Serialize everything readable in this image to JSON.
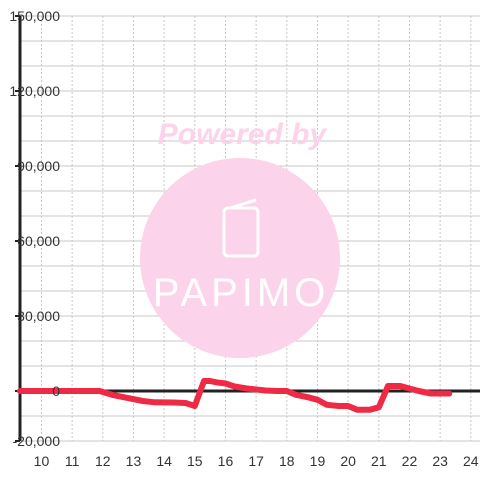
{
  "watermark": {
    "caption": "Powered by",
    "logo_text": "PAPIMO",
    "color": "#fbd3ea",
    "icon": "smartphone-icon"
  },
  "chart_data": {
    "type": "line",
    "title": "",
    "xlabel": "",
    "ylabel": "",
    "xlim": [
      9.3,
      24.3
    ],
    "ylim": [
      -20000,
      150000
    ],
    "x_ticks": [
      10,
      11,
      12,
      13,
      14,
      15,
      16,
      17,
      18,
      19,
      20,
      21,
      22,
      23,
      24
    ],
    "x_tick_labels": [
      "10",
      "11",
      "12",
      "13",
      "14",
      "15",
      "16",
      "17",
      "18",
      "19",
      "20",
      "21",
      "22",
      "23",
      "24"
    ],
    "y_ticks": [
      -20000,
      0,
      30000,
      60000,
      90000,
      120000,
      150000
    ],
    "y_tick_labels": [
      "-20,000",
      "0",
      "30,000",
      "60,000",
      "90,000",
      "120,000",
      "150,000"
    ],
    "grid": true,
    "series": [
      {
        "color": "#ee2a44",
        "x": [
          9.3,
          10,
          11,
          11.9,
          12.3,
          12.7,
          13.3,
          13.7,
          14.3,
          14.7,
          15.0,
          15.3,
          15.5,
          15.7,
          16.0,
          16.3,
          16.7,
          17.3,
          17.7,
          18.0,
          18.3,
          18.7,
          19.0,
          19.3,
          19.7,
          20.0,
          20.3,
          20.7,
          21.0,
          21.3,
          21.7,
          22.0,
          22.3,
          22.7,
          23.3
        ],
        "y": [
          0,
          0,
          0,
          0,
          -1500,
          -2500,
          -4000,
          -4500,
          -4600,
          -4800,
          -6000,
          4000,
          4000,
          3500,
          3000,
          1800,
          1000,
          200,
          0,
          0,
          -1500,
          -2500,
          -3500,
          -5500,
          -6000,
          -6000,
          -7500,
          -7500,
          -6500,
          2000,
          2000,
          1000,
          0,
          -1000,
          -1000
        ]
      }
    ]
  }
}
